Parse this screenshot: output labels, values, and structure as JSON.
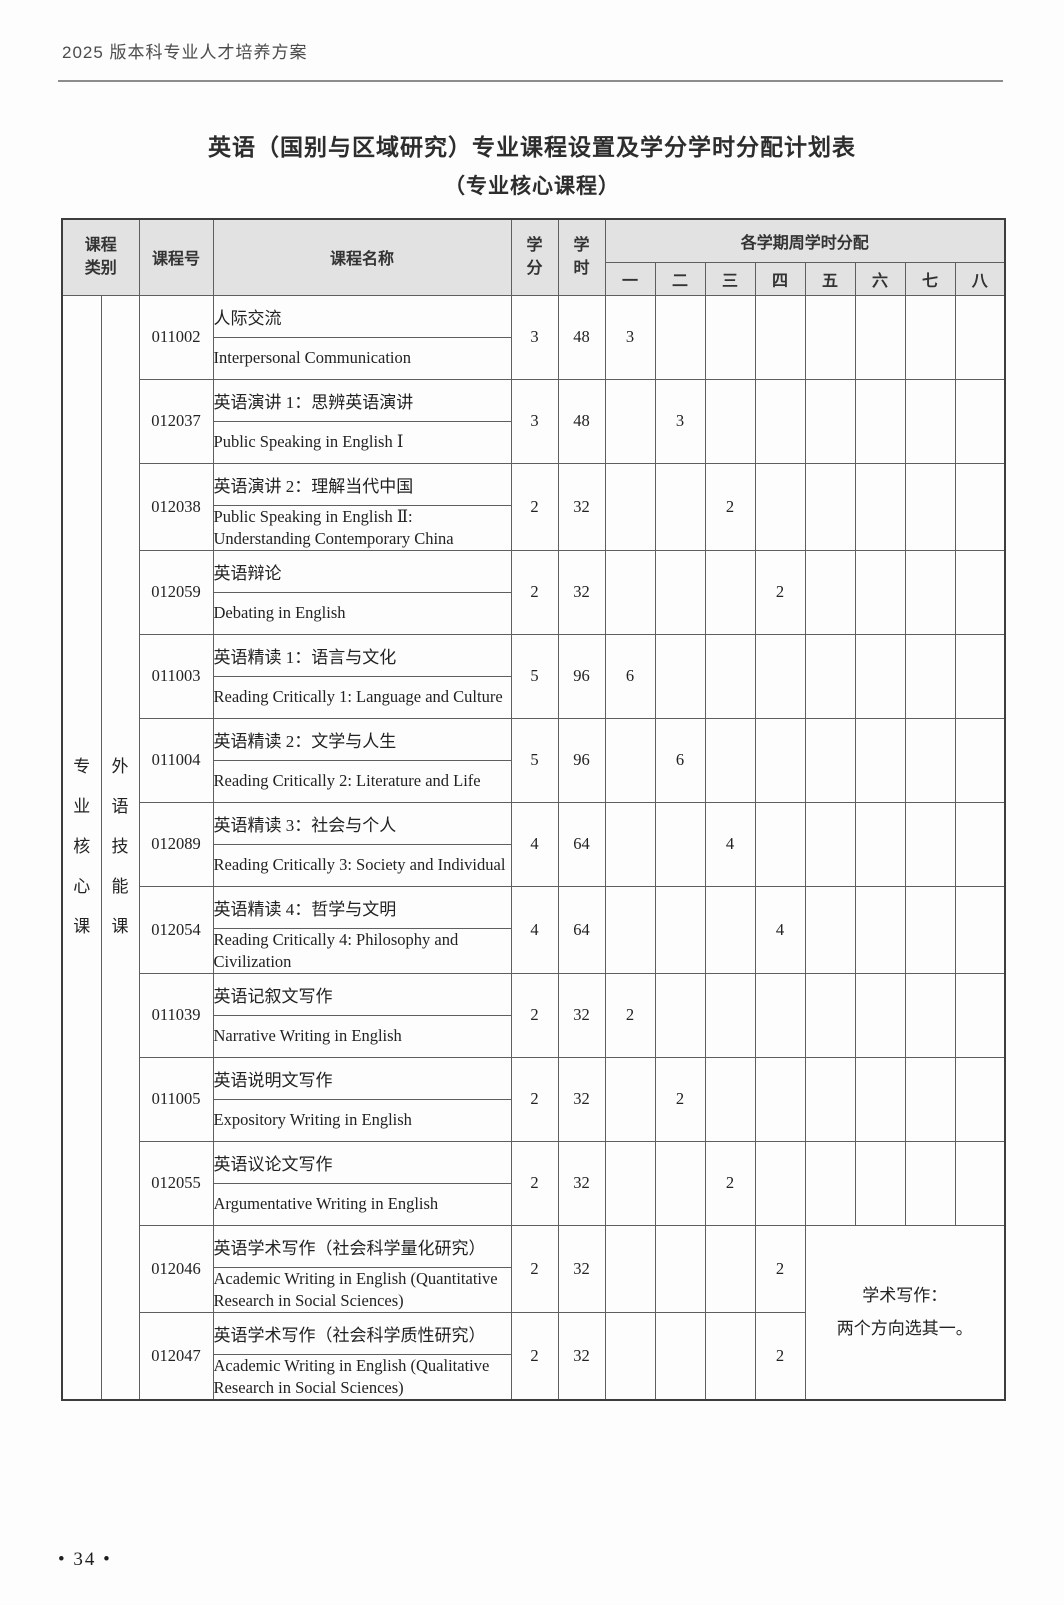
{
  "page": {
    "header": "2025 版本科专业人才培养方案",
    "title_line1": "英语（国别与区域研究）专业课程设置及学分学时分配计划表",
    "title_line2": "（专业核心课程）",
    "footer_page_number": "• 34 •"
  },
  "colors": {
    "table_header_bg": "#e2e2e2",
    "table_border": "#5f5f5f",
    "body_text": "#222222"
  },
  "table": {
    "headers": {
      "category": "课程类别",
      "course_code": "课程号",
      "course_name": "课程名称",
      "credits": "学分",
      "hours": "学时",
      "semester_group": "各学期周学时分配",
      "semesters": [
        "一",
        "二",
        "三",
        "四",
        "五",
        "六",
        "七",
        "八"
      ]
    },
    "category_labels": [
      "专业核心课",
      "外语技能课"
    ],
    "note_line1": "学术写作：",
    "note_line2": "两个方向选其一。",
    "courses": [
      {
        "code": "011002",
        "name_cn": "人际交流",
        "name_en": "Interpersonal Communication",
        "credits": "3",
        "hours": "48",
        "semesters": [
          "3",
          "",
          "",
          "",
          "",
          "",
          "",
          ""
        ]
      },
      {
        "code": "012037",
        "name_cn": "英语演讲 1：思辨英语演讲",
        "name_en": "Public Speaking in English Ⅰ",
        "credits": "3",
        "hours": "48",
        "semesters": [
          "",
          "3",
          "",
          "",
          "",
          "",
          "",
          ""
        ]
      },
      {
        "code": "012038",
        "name_cn": "英语演讲 2：理解当代中国",
        "name_en": "Public Speaking in English Ⅱ: Understanding Contemporary China",
        "credits": "2",
        "hours": "32",
        "semesters": [
          "",
          "",
          "2",
          "",
          "",
          "",
          "",
          ""
        ]
      },
      {
        "code": "012059",
        "name_cn": "英语辩论",
        "name_en": "Debating in English",
        "credits": "2",
        "hours": "32",
        "semesters": [
          "",
          "",
          "",
          "2",
          "",
          "",
          "",
          ""
        ]
      },
      {
        "code": "011003",
        "name_cn": "英语精读 1：语言与文化",
        "name_en": "Reading Critically 1: Language and Culture",
        "credits": "5",
        "hours": "96",
        "semesters": [
          "6",
          "",
          "",
          "",
          "",
          "",
          "",
          ""
        ]
      },
      {
        "code": "011004",
        "name_cn": "英语精读 2：文学与人生",
        "name_en": "Reading Critically 2: Literature and Life",
        "credits": "5",
        "hours": "96",
        "semesters": [
          "",
          "6",
          "",
          "",
          "",
          "",
          "",
          ""
        ]
      },
      {
        "code": "012089",
        "name_cn": "英语精读 3：社会与个人",
        "name_en": "Reading Critically 3: Society and Individual",
        "credits": "4",
        "hours": "64",
        "semesters": [
          "",
          "",
          "4",
          "",
          "",
          "",
          "",
          ""
        ]
      },
      {
        "code": "012054",
        "name_cn": "英语精读 4：哲学与文明",
        "name_en": "Reading Critically 4: Philosophy and Civilization",
        "credits": "4",
        "hours": "64",
        "semesters": [
          "",
          "",
          "",
          "4",
          "",
          "",
          "",
          ""
        ]
      },
      {
        "code": "011039",
        "name_cn": "英语记叙文写作",
        "name_en": "Narrative Writing in English",
        "credits": "2",
        "hours": "32",
        "semesters": [
          "2",
          "",
          "",
          "",
          "",
          "",
          "",
          ""
        ]
      },
      {
        "code": "011005",
        "name_cn": "英语说明文写作",
        "name_en": "Expository Writing in English",
        "credits": "2",
        "hours": "32",
        "semesters": [
          "",
          "2",
          "",
          "",
          "",
          "",
          "",
          ""
        ]
      },
      {
        "code": "012055",
        "name_cn": "英语议论文写作",
        "name_en": "Argumentative Writing in English",
        "credits": "2",
        "hours": "32",
        "semesters": [
          "",
          "",
          "2",
          "",
          "",
          "",
          "",
          ""
        ]
      },
      {
        "code": "012046",
        "name_cn": "英语学术写作（社会科学量化研究）",
        "name_en": "Academic Writing in English (Quantitative Research in Social Sciences)",
        "credits": "2",
        "hours": "32",
        "semesters": [
          "",
          "",
          "",
          "2"
        ],
        "note_start": true
      },
      {
        "code": "012047",
        "name_cn": "英语学术写作（社会科学质性研究）",
        "name_en": "Academic Writing in English (Qualitative Research in Social Sciences)",
        "credits": "2",
        "hours": "32",
        "semesters": [
          "",
          "",
          "",
          "2"
        ],
        "in_note": true
      }
    ]
  }
}
